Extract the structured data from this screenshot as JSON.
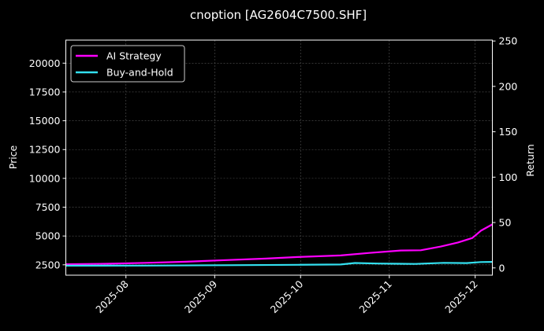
{
  "chart_data": {
    "type": "line",
    "title": "cnoption [AG2604C7500.SHF]",
    "ylabel_left": "Price",
    "ylabel_right": "Return",
    "x_ticks": [
      "2025-08",
      "2025-09",
      "2025-10",
      "2025-11",
      "2025-12"
    ],
    "x_range": [
      "2025-07-11",
      "2025-12-07"
    ],
    "y_left_ticks": [
      "2500",
      "5000",
      "7500",
      "10000",
      "12500",
      "15000",
      "17500",
      "20000"
    ],
    "y_left_range": [
      1600,
      22000
    ],
    "y_right_ticks": [
      "0",
      "50",
      "100",
      "150",
      "200",
      "250"
    ],
    "y_right_range": [
      -8,
      251
    ],
    "grid": true,
    "legend_position": "top-left",
    "series": [
      {
        "name": "AI Strategy",
        "color": "#ff00ff",
        "axis": "right",
        "points": [
          [
            "2025-07-11",
            4.0
          ],
          [
            "2025-07-25",
            4.6
          ],
          [
            "2025-08-08",
            5.6
          ],
          [
            "2025-08-22",
            6.8
          ],
          [
            "2025-09-05",
            8.6
          ],
          [
            "2025-09-19",
            10.3
          ],
          [
            "2025-09-30",
            12.0
          ],
          [
            "2025-10-15",
            13.7
          ],
          [
            "2025-10-25",
            16.5
          ],
          [
            "2025-11-05",
            19.2
          ],
          [
            "2025-11-12",
            19.5
          ],
          [
            "2025-11-19",
            23.5
          ],
          [
            "2025-11-25",
            28.0
          ],
          [
            "2025-11-30",
            33.0
          ],
          [
            "2025-12-03",
            41.0
          ],
          [
            "2025-12-07",
            48.0
          ]
        ]
      },
      {
        "name": "Buy-and-Hold",
        "color": "#33e0f0",
        "axis": "right",
        "points": [
          [
            "2025-07-11",
            2.5
          ],
          [
            "2025-08-08",
            2.6
          ],
          [
            "2025-09-05",
            3.0
          ],
          [
            "2025-09-30",
            3.4
          ],
          [
            "2025-10-15",
            3.8
          ],
          [
            "2025-10-20",
            5.4
          ],
          [
            "2025-10-28",
            4.8
          ],
          [
            "2025-11-10",
            4.4
          ],
          [
            "2025-11-20",
            5.6
          ],
          [
            "2025-11-28",
            5.3
          ],
          [
            "2025-12-03",
            6.5
          ],
          [
            "2025-12-07",
            6.6
          ]
        ]
      }
    ]
  }
}
